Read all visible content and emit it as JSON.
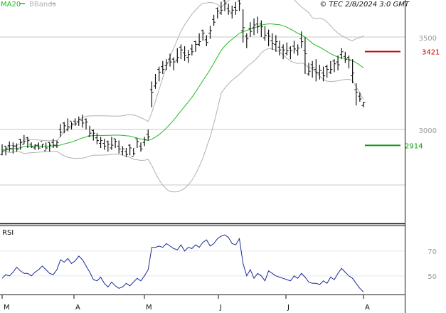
{
  "header": {
    "legend_ma": "MA20",
    "legend_bb": "BBands",
    "copyright": "© TEC 2/8/2024 3:0 GMT"
  },
  "colors": {
    "ma": "#22bb22",
    "bb": "#b0b0b0",
    "price": "#111111",
    "rsi": "#1a2a9a",
    "resistance": "#cc0000",
    "support": "#119911",
    "grid": "#c8c8c8",
    "axis_text": "#9a9a9a",
    "border": "#111111"
  },
  "chart_data": [
    {
      "type": "line",
      "subtype": "ohlc",
      "title": "",
      "ylim": [
        2500,
        3700
      ],
      "y_ticks": [
        {
          "value": 3500,
          "label": "3500"
        },
        {
          "value": 3000,
          "label": "3000"
        }
      ],
      "x_labels": [
        "M",
        "A",
        "M",
        "J",
        "J",
        "A"
      ],
      "grid": true,
      "legend": "top-left",
      "levels": [
        {
          "name": "resistance",
          "value": 3421,
          "label": "3421"
        },
        {
          "name": "support",
          "value": 2914,
          "label": "2914"
        }
      ],
      "bars": [
        [
          2920,
          2860
        ],
        [
          2910,
          2860
        ],
        [
          2935,
          2880
        ],
        [
          2930,
          2870
        ],
        [
          2925,
          2880
        ],
        [
          2950,
          2890
        ],
        [
          2970,
          2920
        ],
        [
          2960,
          2900
        ],
        [
          2930,
          2900
        ],
        [
          2920,
          2890
        ],
        [
          2930,
          2890
        ],
        [
          2920,
          2900
        ],
        [
          2930,
          2890
        ],
        [
          2930,
          2880
        ],
        [
          2950,
          2900
        ],
        [
          2940,
          2900
        ],
        [
          3030,
          2960
        ],
        [
          3040,
          2980
        ],
        [
          3060,
          2990
        ],
        [
          3040,
          3000
        ],
        [
          3060,
          3020
        ],
        [
          3070,
          3020
        ],
        [
          3080,
          3010
        ],
        [
          3060,
          3000
        ],
        [
          3020,
          2960
        ],
        [
          3000,
          2940
        ],
        [
          2980,
          2920
        ],
        [
          2960,
          2900
        ],
        [
          2950,
          2890
        ],
        [
          2940,
          2880
        ],
        [
          2960,
          2890
        ],
        [
          2950,
          2900
        ],
        [
          2940,
          2870
        ],
        [
          2910,
          2860
        ],
        [
          2900,
          2850
        ],
        [
          2920,
          2860
        ],
        [
          2900,
          2860
        ],
        [
          2950,
          2900
        ],
        [
          2930,
          2880
        ],
        [
          2960,
          2910
        ],
        [
          3000,
          2940
        ],
        [
          3260,
          3120
        ],
        [
          3300,
          3220
        ],
        [
          3340,
          3260
        ],
        [
          3370,
          3300
        ],
        [
          3380,
          3320
        ],
        [
          3410,
          3340
        ],
        [
          3390,
          3320
        ],
        [
          3440,
          3360
        ],
        [
          3460,
          3380
        ],
        [
          3450,
          3370
        ],
        [
          3430,
          3360
        ],
        [
          3460,
          3400
        ],
        [
          3480,
          3420
        ],
        [
          3520,
          3450
        ],
        [
          3540,
          3480
        ],
        [
          3510,
          3450
        ],
        [
          3560,
          3490
        ],
        [
          3620,
          3560
        ],
        [
          3660,
          3600
        ],
        [
          3690,
          3620
        ],
        [
          3700,
          3640
        ],
        [
          3680,
          3620
        ],
        [
          3670,
          3600
        ],
        [
          3690,
          3620
        ],
        [
          3700,
          3640
        ],
        [
          3650,
          3470
        ],
        [
          3520,
          3440
        ],
        [
          3580,
          3500
        ],
        [
          3600,
          3510
        ],
        [
          3610,
          3520
        ],
        [
          3590,
          3500
        ],
        [
          3560,
          3480
        ],
        [
          3540,
          3450
        ],
        [
          3520,
          3430
        ],
        [
          3510,
          3420
        ],
        [
          3480,
          3400
        ],
        [
          3460,
          3380
        ],
        [
          3470,
          3400
        ],
        [
          3450,
          3380
        ],
        [
          3480,
          3410
        ],
        [
          3460,
          3400
        ],
        [
          3530,
          3440
        ],
        [
          3500,
          3300
        ],
        [
          3360,
          3290
        ],
        [
          3370,
          3280
        ],
        [
          3380,
          3260
        ],
        [
          3350,
          3270
        ],
        [
          3340,
          3260
        ],
        [
          3350,
          3280
        ],
        [
          3370,
          3300
        ],
        [
          3380,
          3310
        ],
        [
          3400,
          3320
        ],
        [
          3440,
          3380
        ],
        [
          3420,
          3360
        ],
        [
          3400,
          3330
        ],
        [
          3380,
          3250
        ],
        [
          3250,
          3130
        ],
        [
          3200,
          3150
        ],
        [
          3150,
          3120
        ]
      ]
    },
    {
      "type": "line",
      "title": "RSI",
      "ylim": [
        35,
        90
      ],
      "y_ticks": [
        {
          "value": 70,
          "label": "70"
        },
        {
          "value": 50,
          "label": "50"
        }
      ],
      "series": [
        {
          "name": "RSI",
          "values": [
            48,
            51,
            50,
            53,
            57,
            54,
            52,
            52,
            50,
            53,
            55,
            58,
            55,
            52,
            51,
            55,
            63,
            61,
            64,
            60,
            62,
            66,
            63,
            58,
            53,
            47,
            46,
            49,
            44,
            41,
            45,
            42,
            40,
            41,
            44,
            42,
            45,
            48,
            46,
            50,
            55,
            73,
            73,
            74,
            73,
            76,
            74,
            72,
            71,
            75,
            70,
            73,
            72,
            75,
            73,
            77,
            79,
            74,
            76,
            80,
            82,
            83,
            81,
            76,
            75,
            80,
            60,
            50,
            55,
            48,
            52,
            50,
            46,
            54,
            52,
            50,
            49,
            48,
            47,
            46,
            50,
            48,
            52,
            49,
            45,
            44,
            44,
            43,
            46,
            44,
            49,
            47,
            52,
            56,
            53,
            50,
            48,
            44,
            40,
            37
          ]
        }
      ]
    }
  ]
}
